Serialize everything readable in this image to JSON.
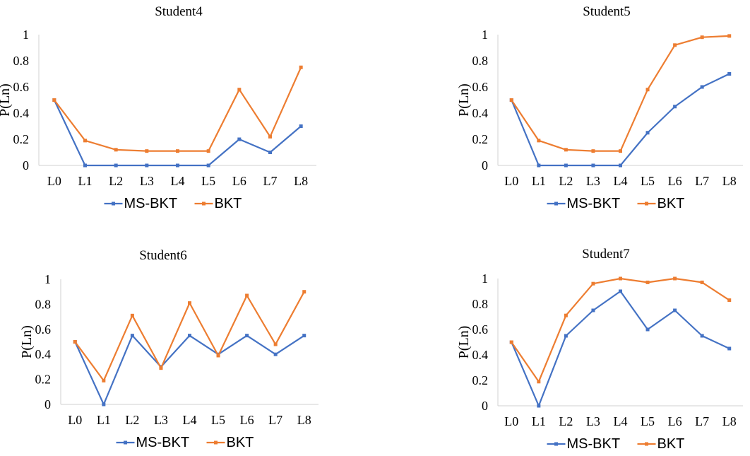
{
  "legend": {
    "series_names": [
      "MS-BKT",
      "BKT"
    ]
  },
  "colors": {
    "ms_bkt": "#4472C4",
    "bkt": "#ED7D31",
    "axis": "#d0d0d0"
  },
  "chart_data": [
    {
      "type": "line",
      "title": "Student4",
      "ylabel": "P(Ln)",
      "categories": [
        "L0",
        "L1",
        "L2",
        "L3",
        "L4",
        "L5",
        "L6",
        "L7",
        "L8"
      ],
      "ylim": [
        0,
        1
      ],
      "yticks": [
        "0",
        "0.2",
        "0.4",
        "0.6",
        "0.8",
        "1"
      ],
      "grid": false,
      "legend_position": "bottom",
      "series": [
        {
          "name": "MS-BKT",
          "color": "#4472C4",
          "values": [
            0.5,
            0,
            0,
            0,
            0,
            0,
            0.2,
            0.1,
            0.3
          ]
        },
        {
          "name": "BKT",
          "color": "#ED7D31",
          "values": [
            0.5,
            0.19,
            0.12,
            0.11,
            0.11,
            0.11,
            0.58,
            0.22,
            0.75
          ]
        }
      ]
    },
    {
      "type": "line",
      "title": "Student5",
      "ylabel": "P(Ln)",
      "categories": [
        "L0",
        "L1",
        "L2",
        "L3",
        "L4",
        "L5",
        "L6",
        "L7",
        "L8"
      ],
      "ylim": [
        0,
        1
      ],
      "yticks": [
        "0",
        "0.2",
        "0.4",
        "0.6",
        "0.8",
        "1"
      ],
      "grid": false,
      "legend_position": "bottom",
      "series": [
        {
          "name": "MS-BKT",
          "color": "#4472C4",
          "values": [
            0.5,
            0,
            0,
            0,
            0,
            0.25,
            0.45,
            0.6,
            0.7
          ]
        },
        {
          "name": "BKT",
          "color": "#ED7D31",
          "values": [
            0.5,
            0.19,
            0.12,
            0.11,
            0.11,
            0.58,
            0.92,
            0.98,
            0.99
          ]
        }
      ]
    },
    {
      "type": "line",
      "title": "Student6",
      "ylabel": "P(Ln)",
      "categories": [
        "L0",
        "L1",
        "L2",
        "L3",
        "L4",
        "L5",
        "L6",
        "L7",
        "L8"
      ],
      "ylim": [
        0,
        1
      ],
      "yticks": [
        "0",
        "0.2",
        "0.4",
        "0.6",
        "0.8",
        "1"
      ],
      "grid": false,
      "legend_position": "bottom",
      "series": [
        {
          "name": "MS-BKT",
          "color": "#4472C4",
          "values": [
            0.5,
            0,
            0.55,
            0.3,
            0.55,
            0.4,
            0.55,
            0.4,
            0.55
          ]
        },
        {
          "name": "BKT",
          "color": "#ED7D31",
          "values": [
            0.5,
            0.19,
            0.71,
            0.29,
            0.81,
            0.39,
            0.87,
            0.48,
            0.9
          ]
        }
      ]
    },
    {
      "type": "line",
      "title": "Student7",
      "ylabel": "P(Ln)",
      "categories": [
        "L0",
        "L1",
        "L2",
        "L3",
        "L4",
        "L5",
        "L6",
        "L7",
        "L8"
      ],
      "ylim": [
        0,
        1
      ],
      "yticks": [
        "0",
        "0.2",
        "0.4",
        "0.6",
        "0.8",
        "1"
      ],
      "grid": false,
      "legend_position": "bottom",
      "series": [
        {
          "name": "MS-BKT",
          "color": "#4472C4",
          "values": [
            0.5,
            0,
            0.55,
            0.75,
            0.9,
            0.6,
            0.75,
            0.55,
            0.45
          ]
        },
        {
          "name": "BKT",
          "color": "#ED7D31",
          "values": [
            0.5,
            0.19,
            0.71,
            0.96,
            1.0,
            0.97,
            1.0,
            0.97,
            0.83
          ]
        }
      ]
    }
  ]
}
